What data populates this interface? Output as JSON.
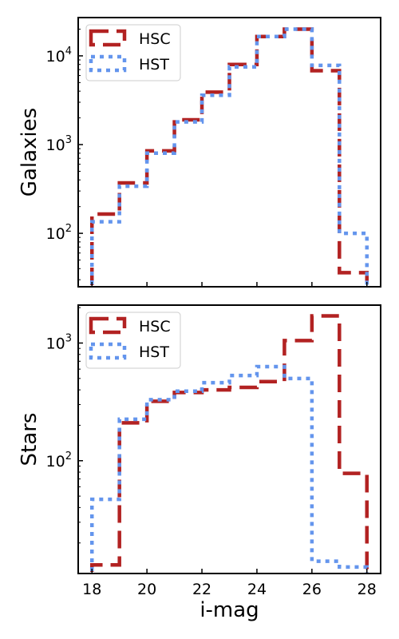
{
  "figure": {
    "xlabel": "i-mag",
    "x_tick_labels": [
      "18",
      "20",
      "22",
      "24",
      "26",
      "28"
    ]
  },
  "chart_data": [
    {
      "type": "histogram",
      "ylabel": "Galaxies",
      "yscale": "log",
      "xlim": [
        17.5,
        28.5
      ],
      "ylim": [
        25,
        27000
      ],
      "y_ticks": [
        {
          "value": 100,
          "base": "10",
          "exp": "2"
        },
        {
          "value": 1000,
          "base": "10",
          "exp": "3"
        },
        {
          "value": 10000,
          "base": "10",
          "exp": "4"
        }
      ],
      "bin_edges": [
        18,
        19,
        20,
        21,
        22,
        23,
        24,
        25,
        26,
        27,
        28
      ],
      "series": [
        {
          "name": "HSC",
          "color": "#b22222",
          "linestyle": "dashed",
          "values": [
            165,
            370,
            850,
            1900,
            3900,
            8000,
            16500,
            20000,
            6800,
            36
          ]
        },
        {
          "name": "HST",
          "color": "#6495ed",
          "linestyle": "dotted",
          "values": [
            135,
            340,
            800,
            1800,
            3600,
            7500,
            16500,
            20000,
            7800,
            100
          ]
        }
      ],
      "legend": {
        "location": "upper-left",
        "entries": [
          "HSC",
          "HST"
        ]
      }
    },
    {
      "type": "histogram",
      "ylabel": "Stars",
      "yscale": "log",
      "xlim": [
        17.5,
        28.5
      ],
      "ylim": [
        11,
        2100
      ],
      "y_ticks": [
        {
          "value": 100,
          "base": "10",
          "exp": "2"
        },
        {
          "value": 1000,
          "base": "10",
          "exp": "3"
        }
      ],
      "bin_edges": [
        18,
        19,
        20,
        21,
        22,
        23,
        24,
        25,
        26,
        27,
        28
      ],
      "series": [
        {
          "name": "HSC",
          "color": "#b22222",
          "linestyle": "dashed",
          "values": [
            13,
            210,
            320,
            380,
            400,
            420,
            470,
            1050,
            1700,
            78
          ]
        },
        {
          "name": "HST",
          "color": "#6495ed",
          "linestyle": "dotted",
          "values": [
            47,
            225,
            330,
            390,
            460,
            530,
            630,
            500,
            14,
            12.5
          ]
        }
      ],
      "legend": {
        "location": "upper-left",
        "entries": [
          "HSC",
          "HST"
        ]
      }
    }
  ]
}
